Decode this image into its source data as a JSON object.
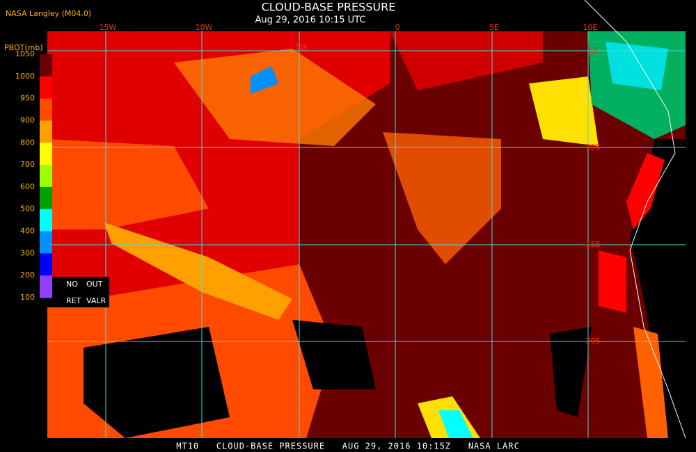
{
  "header": {
    "source": "NASA Langley (M04.0)",
    "title": "CLOUD-BASE PRESSURE",
    "subtitle": "Aug 29, 2016 10:15 UTC"
  },
  "legend": {
    "title": "PBOT(mb)",
    "ticks": [
      1050,
      1000,
      950,
      900,
      800,
      700,
      600,
      500,
      400,
      300,
      200,
      100
    ],
    "colors": [
      "#6a0000",
      "#ff0000",
      "#ff4a00",
      "#ffa000",
      "#ffff00",
      "#a0ff00",
      "#00a000",
      "#00ffff",
      "#0090ff",
      "#0000ff",
      "#9040ff"
    ],
    "no_label": "NO",
    "ret_label": "RET",
    "out_label": "OUT",
    "valr_label": "VALR"
  },
  "grid": {
    "lon_labels": [
      "15W",
      "10W",
      "5W",
      "0",
      "5E",
      "10E"
    ],
    "lat_labels": [
      "5S",
      "10S",
      "15S",
      "20S"
    ]
  },
  "footer": "MT10   CLOUD-BASE PRESSURE   AUG 29, 2016 10:15Z   NASA LARC"
}
